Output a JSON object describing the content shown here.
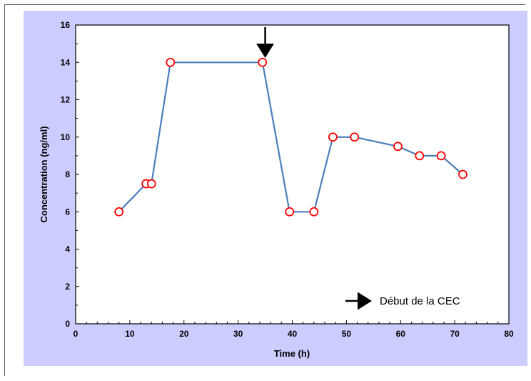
{
  "chart_data": {
    "type": "line",
    "xlabel": "Time (h)",
    "ylabel": "Concentration (ng/ml)",
    "xlim": [
      0,
      80
    ],
    "ylim": [
      0,
      16
    ],
    "xticks": [
      0,
      10,
      20,
      30,
      40,
      50,
      60,
      70,
      80
    ],
    "yticks": [
      0,
      2,
      4,
      6,
      8,
      10,
      12,
      14,
      16
    ],
    "grid": false,
    "series": [
      {
        "x": [
          8,
          13,
          14,
          17.5,
          34.5,
          39.5,
          44,
          47.5,
          51.5,
          59.5,
          63.5,
          67.5,
          71.5
        ],
        "y": [
          6,
          7.5,
          7.5,
          14,
          14,
          6,
          6,
          10,
          10,
          9.5,
          9,
          9,
          8
        ]
      }
    ],
    "annotations": [
      {
        "type": "arrow-down",
        "x": 35,
        "label": ""
      }
    ],
    "legend": {
      "label": "Début de la CEC",
      "placement": "bottom-right",
      "symbol": "arrow-right"
    },
    "colors": {
      "line": "#4a7ebb",
      "marker_edge": "#ff0000",
      "marker_fill": "#ffffff",
      "plot_background": "#ccccff",
      "axes_background": "#ffffff"
    }
  }
}
